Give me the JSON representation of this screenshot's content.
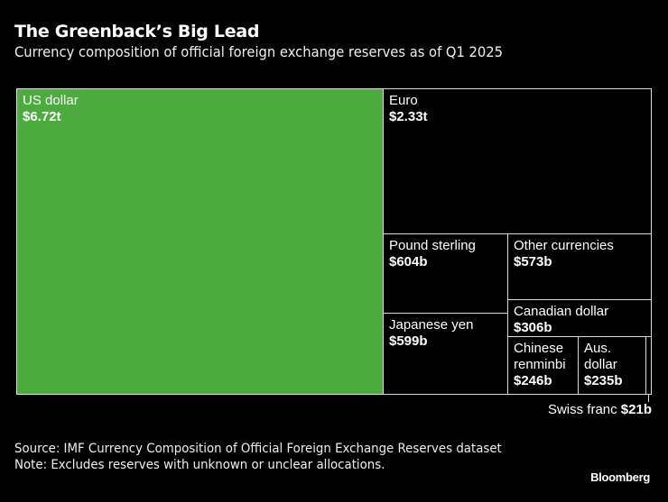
{
  "chart_data": {
    "type": "treemap",
    "title": "The Greenback’s Big Lead",
    "subtitle": "Currency composition of official foreign exchange reserves as of Q1 2025",
    "items": [
      {
        "name": "US dollar",
        "label": "$6.72t",
        "value_billions": 6720,
        "color": "#4bab3d"
      },
      {
        "name": "Euro",
        "label": "$2.33t",
        "value_billions": 2330,
        "color": "#000000"
      },
      {
        "name": "Pound sterling",
        "label": "$604b",
        "value_billions": 604,
        "color": "#000000"
      },
      {
        "name": "Japanese yen",
        "label": "$599b",
        "value_billions": 599,
        "color": "#000000"
      },
      {
        "name": "Other currencies",
        "label": "$573b",
        "value_billions": 573,
        "color": "#000000"
      },
      {
        "name": "Canadian dollar",
        "label": "$306b",
        "value_billions": 306,
        "color": "#000000"
      },
      {
        "name": "Chinese renminbi",
        "label": "$246b",
        "value_billions": 246,
        "color": "#000000"
      },
      {
        "name": "Aus. dollar",
        "label": "$235b",
        "value_billions": 235,
        "color": "#000000"
      },
      {
        "name": "Swiss franc",
        "label": "$21b",
        "value_billions": 21,
        "color": "#000000"
      }
    ]
  },
  "footer": {
    "source": "Source: IMF Currency Composition of Official Foreign Exchange Reserves dataset",
    "note": "Note: Excludes reserves with unknown or unclear allocations.",
    "logo": "Bloomberg"
  }
}
